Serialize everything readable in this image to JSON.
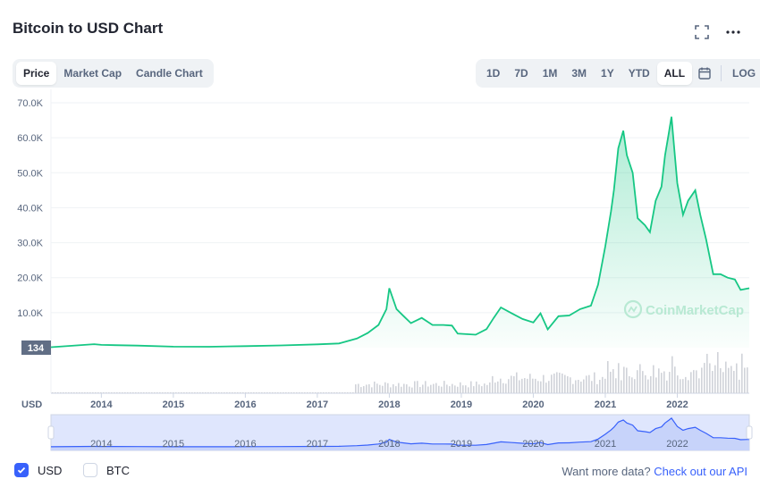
{
  "header": {
    "title": "Bitcoin to USD Chart",
    "icons": [
      "fullscreen-icon",
      "more-icon"
    ]
  },
  "chart_tabs": [
    {
      "label": "Price",
      "active": true
    },
    {
      "label": "Market Cap",
      "active": false
    },
    {
      "label": "Candle Chart",
      "active": false
    }
  ],
  "ranges": [
    {
      "label": "1D",
      "active": false
    },
    {
      "label": "7D",
      "active": false
    },
    {
      "label": "1M",
      "active": false
    },
    {
      "label": "3M",
      "active": false
    },
    {
      "label": "1Y",
      "active": false
    },
    {
      "label": "YTD",
      "active": false
    },
    {
      "label": "ALL",
      "active": true
    }
  ],
  "scale_button": "LOG",
  "watermark": "CoinMarketCap",
  "colors": {
    "line": "#16c784",
    "accent": "#3861fb",
    "volume": "#d0d3d9",
    "navigator": "#dfe6fd"
  },
  "chart_data": {
    "type": "area",
    "title": "",
    "ylabel": "USD",
    "y_ticks": [
      "70.0K",
      "60.0K",
      "50.0K",
      "40.0K",
      "30.0K",
      "20.0K",
      "10.0K"
    ],
    "ylim": [
      0,
      70000
    ],
    "x_ticks": [
      "2014",
      "2015",
      "2016",
      "2017",
      "2018",
      "2019",
      "2020",
      "2021",
      "2022"
    ],
    "current_marker": "134",
    "x_unit": "year (decimal)",
    "series": [
      {
        "x": [
          2013.3,
          2013.9,
          2014.0,
          2014.5,
          2015.0,
          2015.5,
          2016.0,
          2016.5,
          2017.0,
          2017.3,
          2017.55,
          2017.7,
          2017.85,
          2017.96,
          2018.0,
          2018.1,
          2018.2,
          2018.3,
          2018.45,
          2018.6,
          2018.75,
          2018.87,
          2018.95,
          2019.2,
          2019.35,
          2019.45,
          2019.55,
          2019.7,
          2019.85,
          2020.0,
          2020.1,
          2020.2,
          2020.35,
          2020.5,
          2020.65,
          2020.8,
          2020.9,
          2021.0,
          2021.08,
          2021.12,
          2021.18,
          2021.25,
          2021.3,
          2021.38,
          2021.45,
          2021.55,
          2021.62,
          2021.7,
          2021.78,
          2021.83,
          2021.88,
          2021.92,
          2022.0,
          2022.08,
          2022.15,
          2022.25,
          2022.32,
          2022.4,
          2022.5,
          2022.6,
          2022.7,
          2022.8,
          2022.88,
          2022.95,
          2023.0
        ],
        "y": [
          130,
          1000,
          800,
          600,
          280,
          260,
          430,
          650,
          950,
          1200,
          2600,
          4200,
          6500,
          11000,
          17000,
          11000,
          9000,
          7000,
          8500,
          6500,
          6500,
          6300,
          4000,
          3700,
          5300,
          8500,
          11500,
          9800,
          8200,
          7200,
          9800,
          5200,
          9000,
          9200,
          11000,
          12000,
          18000,
          29000,
          39000,
          45000,
          57000,
          62000,
          55000,
          50000,
          37000,
          35000,
          33000,
          42000,
          46000,
          55000,
          61000,
          66000,
          47000,
          38000,
          42000,
          45000,
          38000,
          31000,
          21000,
          21000,
          20000,
          19500,
          16500,
          16800,
          17000
        ]
      }
    ],
    "volume_profile": "low until 2017, rising from 2018, peaks in 2021-2022",
    "navigator_x_ticks": [
      "2014",
      "2015",
      "2016",
      "2017",
      "2018",
      "2019",
      "2020",
      "2021",
      "2022"
    ]
  },
  "footer": {
    "currencies": [
      {
        "label": "USD",
        "checked": true
      },
      {
        "label": "BTC",
        "checked": false
      }
    ],
    "more_text": "Want more data?",
    "more_link": "Check out our API"
  }
}
